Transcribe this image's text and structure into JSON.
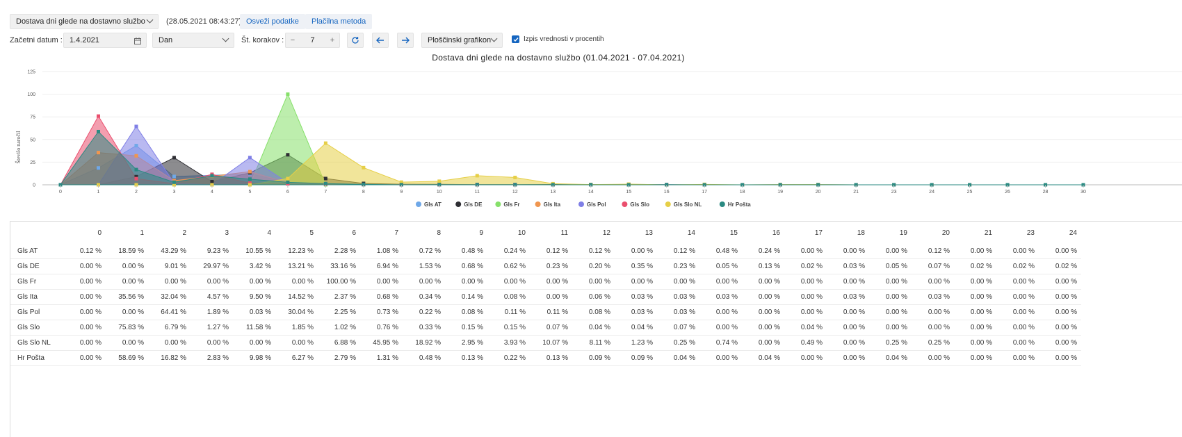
{
  "toolbar": {
    "report_select": "Dostava dni glede na dostavno službo",
    "timestamp": "(28.05.2021 08:43:27)",
    "refresh_label": "Osveži podatke",
    "payment_label": "Plačilna metoda",
    "start_date_label": "Začetni datum :",
    "start_date_value": "1.4.2021",
    "period_select": "Dan",
    "steps_label": "Št. korakov :",
    "steps_minus": "−",
    "steps_value": "7",
    "steps_plus": "+",
    "chart_type_select": "Ploščinski grafikon",
    "percent_checkbox_label": "Izpis vrednosti v procentih"
  },
  "colors": {
    "Gls AT": "#6fa8e8",
    "Gls DE": "#2e2e33",
    "Gls Fr": "#86e06a",
    "Gls Ita": "#f0964f",
    "Gls Pol": "#7f7fe6",
    "Gls Slo": "#ea4f6e",
    "Gls Slo NL": "#e6cf47",
    "Hr Pošta": "#2a8a82"
  },
  "chart_data": {
    "type": "area",
    "title": "Dostava dni glede na dostavno službo (01.04.2021 - 07.04.2021)",
    "ylabel": "Število naročil",
    "xlabel": "",
    "ylim": [
      0,
      125
    ],
    "yticks": [
      0,
      25,
      50,
      75,
      100,
      125
    ],
    "x": [
      "0",
      "1",
      "2",
      "3",
      "4",
      "5",
      "6",
      "7",
      "8",
      "9",
      "10",
      "11",
      "12",
      "13",
      "14",
      "15",
      "16",
      "17",
      "18",
      "19",
      "20",
      "21",
      "23",
      "24",
      "25",
      "26",
      "28",
      "30"
    ],
    "legend_position": "bottom",
    "series": [
      {
        "name": "Gls AT",
        "values": [
          0.12,
          18.59,
          43.29,
          9.23,
          10.55,
          12.23,
          2.28,
          1.08,
          0.72,
          0.48,
          0.24,
          0.12,
          0.12,
          0,
          0.12,
          0.48,
          0.24,
          0,
          0,
          0,
          0.12,
          0,
          0,
          0,
          0,
          0,
          0,
          0
        ]
      },
      {
        "name": "Gls DE",
        "values": [
          0,
          0,
          9.01,
          29.97,
          3.42,
          13.21,
          33.16,
          6.94,
          1.53,
          0.68,
          0.62,
          0.23,
          0.2,
          0.35,
          0.23,
          0.05,
          0.13,
          0.02,
          0.03,
          0.05,
          0.07,
          0.02,
          0.02,
          0.02,
          0,
          0,
          0,
          0
        ]
      },
      {
        "name": "Gls Fr",
        "values": [
          0,
          0,
          0,
          0,
          0,
          0,
          100,
          0,
          0,
          0,
          0,
          0,
          0,
          0,
          0,
          0,
          0,
          0,
          0,
          0,
          0,
          0,
          0,
          0,
          0,
          0,
          0,
          0
        ]
      },
      {
        "name": "Gls Ita",
        "values": [
          0,
          35.56,
          32.04,
          4.57,
          9.5,
          14.52,
          2.37,
          0.68,
          0.34,
          0.14,
          0.08,
          0,
          0.06,
          0.03,
          0.03,
          0.03,
          0,
          0,
          0.03,
          0,
          0.03,
          0,
          0,
          0,
          0,
          0,
          0,
          0
        ]
      },
      {
        "name": "Gls Pol",
        "values": [
          0,
          0,
          64.41,
          1.89,
          0.03,
          30.04,
          2.25,
          0.73,
          0.22,
          0.08,
          0.11,
          0.11,
          0.08,
          0.03,
          0.03,
          0,
          0,
          0,
          0,
          0,
          0,
          0,
          0,
          0,
          0,
          0,
          0,
          0
        ]
      },
      {
        "name": "Gls Slo",
        "values": [
          0,
          75.83,
          6.79,
          1.27,
          11.58,
          1.85,
          1.02,
          0.76,
          0.33,
          0.15,
          0.15,
          0.07,
          0.04,
          0.04,
          0.07,
          0,
          0,
          0.04,
          0,
          0,
          0,
          0,
          0,
          0,
          0,
          0,
          0,
          0
        ]
      },
      {
        "name": "Gls Slo NL",
        "values": [
          0,
          0,
          0,
          0,
          0,
          0,
          6.88,
          45.95,
          18.92,
          2.95,
          3.93,
          10.07,
          8.11,
          1.23,
          0.25,
          0.74,
          0,
          0.49,
          0,
          0.25,
          0.25,
          0,
          0,
          0,
          0,
          0,
          0,
          0
        ]
      },
      {
        "name": "Hr Pošta",
        "values": [
          0,
          58.69,
          16.82,
          2.83,
          9.98,
          6.27,
          2.79,
          1.31,
          0.48,
          0.13,
          0.22,
          0.13,
          0.09,
          0.09,
          0.04,
          0,
          0.04,
          0,
          0,
          0.04,
          0,
          0,
          0,
          0,
          0,
          0,
          0,
          0
        ]
      }
    ]
  },
  "table": {
    "headers": [
      "0",
      "1",
      "2",
      "3",
      "4",
      "5",
      "6",
      "7",
      "8",
      "9",
      "10",
      "11",
      "12",
      "13",
      "14",
      "15",
      "16",
      "17",
      "18",
      "19",
      "20",
      "21",
      "23",
      "24"
    ],
    "rows": [
      {
        "label": "Gls AT",
        "cells": [
          "0.12 %",
          "18.59 %",
          "43.29 %",
          "9.23 %",
          "10.55 %",
          "12.23 %",
          "2.28 %",
          "1.08 %",
          "0.72 %",
          "0.48 %",
          "0.24 %",
          "0.12 %",
          "0.12 %",
          "0.00 %",
          "0.12 %",
          "0.48 %",
          "0.24 %",
          "0.00 %",
          "0.00 %",
          "0.00 %",
          "0.12 %",
          "0.00 %",
          "0.00 %",
          "0.00 %"
        ]
      },
      {
        "label": "Gls DE",
        "cells": [
          "0.00 %",
          "0.00 %",
          "9.01 %",
          "29.97 %",
          "3.42 %",
          "13.21 %",
          "33.16 %",
          "6.94 %",
          "1.53 %",
          "0.68 %",
          "0.62 %",
          "0.23 %",
          "0.20 %",
          "0.35 %",
          "0.23 %",
          "0.05 %",
          "0.13 %",
          "0.02 %",
          "0.03 %",
          "0.05 %",
          "0.07 %",
          "0.02 %",
          "0.02 %",
          "0.02 %"
        ]
      },
      {
        "label": "Gls Fr",
        "cells": [
          "0.00 %",
          "0.00 %",
          "0.00 %",
          "0.00 %",
          "0.00 %",
          "0.00 %",
          "100.00 %",
          "0.00 %",
          "0.00 %",
          "0.00 %",
          "0.00 %",
          "0.00 %",
          "0.00 %",
          "0.00 %",
          "0.00 %",
          "0.00 %",
          "0.00 %",
          "0.00 %",
          "0.00 %",
          "0.00 %",
          "0.00 %",
          "0.00 %",
          "0.00 %",
          "0.00 %"
        ]
      },
      {
        "label": "Gls Ita",
        "cells": [
          "0.00 %",
          "35.56 %",
          "32.04 %",
          "4.57 %",
          "9.50 %",
          "14.52 %",
          "2.37 %",
          "0.68 %",
          "0.34 %",
          "0.14 %",
          "0.08 %",
          "0.00 %",
          "0.06 %",
          "0.03 %",
          "0.03 %",
          "0.03 %",
          "0.00 %",
          "0.00 %",
          "0.03 %",
          "0.00 %",
          "0.03 %",
          "0.00 %",
          "0.00 %",
          "0.00 %"
        ]
      },
      {
        "label": "Gls Pol",
        "cells": [
          "0.00 %",
          "0.00 %",
          "64.41 %",
          "1.89 %",
          "0.03 %",
          "30.04 %",
          "2.25 %",
          "0.73 %",
          "0.22 %",
          "0.08 %",
          "0.11 %",
          "0.11 %",
          "0.08 %",
          "0.03 %",
          "0.03 %",
          "0.00 %",
          "0.00 %",
          "0.00 %",
          "0.00 %",
          "0.00 %",
          "0.00 %",
          "0.00 %",
          "0.00 %",
          "0.00 %"
        ]
      },
      {
        "label": "Gls Slo",
        "cells": [
          "0.00 %",
          "75.83 %",
          "6.79 %",
          "1.27 %",
          "11.58 %",
          "1.85 %",
          "1.02 %",
          "0.76 %",
          "0.33 %",
          "0.15 %",
          "0.15 %",
          "0.07 %",
          "0.04 %",
          "0.04 %",
          "0.07 %",
          "0.00 %",
          "0.00 %",
          "0.04 %",
          "0.00 %",
          "0.00 %",
          "0.00 %",
          "0.00 %",
          "0.00 %",
          "0.00 %"
        ]
      },
      {
        "label": "Gls Slo NL",
        "cells": [
          "0.00 %",
          "0.00 %",
          "0.00 %",
          "0.00 %",
          "0.00 %",
          "0.00 %",
          "6.88 %",
          "45.95 %",
          "18.92 %",
          "2.95 %",
          "3.93 %",
          "10.07 %",
          "8.11 %",
          "1.23 %",
          "0.25 %",
          "0.74 %",
          "0.00 %",
          "0.49 %",
          "0.00 %",
          "0.25 %",
          "0.25 %",
          "0.00 %",
          "0.00 %",
          "0.00 %"
        ]
      },
      {
        "label": "Hr Pošta",
        "cells": [
          "0.00 %",
          "58.69 %",
          "16.82 %",
          "2.83 %",
          "9.98 %",
          "6.27 %",
          "2.79 %",
          "1.31 %",
          "0.48 %",
          "0.13 %",
          "0.22 %",
          "0.13 %",
          "0.09 %",
          "0.09 %",
          "0.04 %",
          "0.00 %",
          "0.04 %",
          "0.00 %",
          "0.00 %",
          "0.04 %",
          "0.00 %",
          "0.00 %",
          "0.00 %",
          "0.00 %"
        ]
      }
    ]
  }
}
